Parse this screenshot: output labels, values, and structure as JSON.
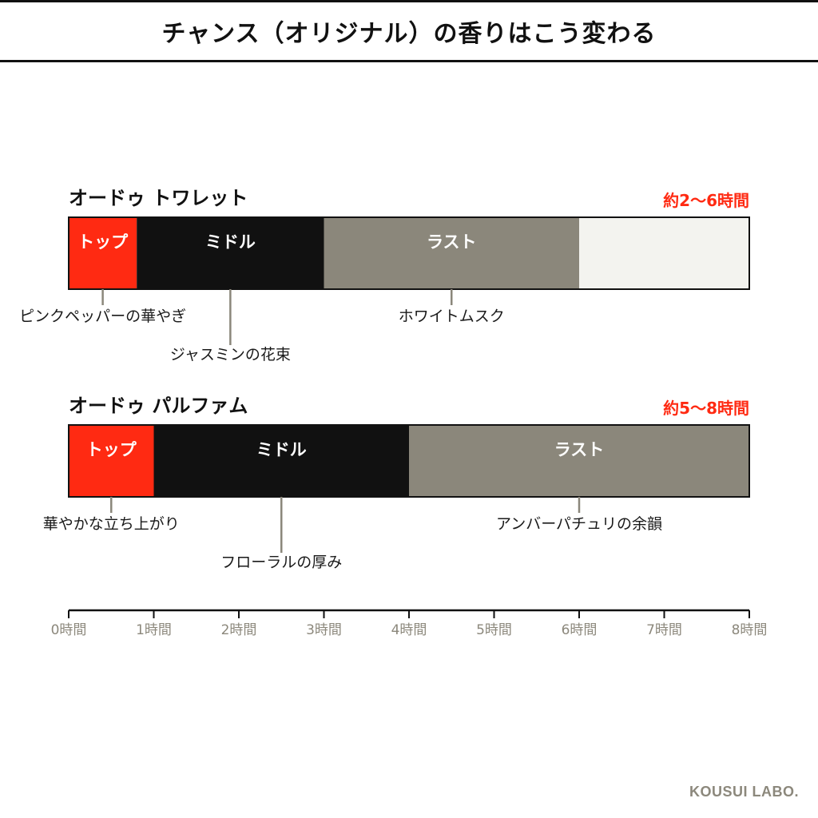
{
  "page": {
    "title": "チャンス（オリジナル）の香りはこう変わる",
    "brand": "KOUSUI LABO."
  },
  "colors": {
    "top": "#ff2a12",
    "middle": "#111111",
    "last": "#8b877b",
    "empty": "#f3f3ef",
    "accent": "#ff2a12",
    "axis": "#111111",
    "tick_label": "#8c887c",
    "leader": "#8b877b"
  },
  "chart_data": {
    "type": "bar",
    "orientation": "horizontal-stacked-timeline",
    "xlabel": "",
    "x_unit": "時間",
    "xlim": [
      0,
      8
    ],
    "x_ticks": [
      0,
      1,
      2,
      3,
      4,
      5,
      6,
      7,
      8
    ],
    "x_tick_labels": [
      "0時間",
      "1時間",
      "2時間",
      "3時間",
      "4時間",
      "5時間",
      "6時間",
      "7時間",
      "8時間"
    ],
    "grid": false,
    "legend": "none",
    "series": [
      {
        "name": "オードゥ トワレット",
        "duration_label": "約2〜6時間",
        "segments": [
          {
            "label": "トップ",
            "phase": "top",
            "start": 0,
            "end": 0.8
          },
          {
            "label": "ミドル",
            "phase": "middle",
            "start": 0.8,
            "end": 3.0
          },
          {
            "label": "ラスト",
            "phase": "last",
            "start": 3.0,
            "end": 6.0
          },
          {
            "label": "",
            "phase": "empty",
            "start": 6.0,
            "end": 8.0
          }
        ],
        "annotations": [
          {
            "text": "ピンクペッパーの華やぎ",
            "x": 0.4,
            "level": 1
          },
          {
            "text": "ジャスミンの花束",
            "x": 1.9,
            "level": 2
          },
          {
            "text": "ホワイトムスク",
            "x": 4.5,
            "level": 1
          }
        ]
      },
      {
        "name": "オードゥ パルファム",
        "duration_label": "約5〜8時間",
        "segments": [
          {
            "label": "トップ",
            "phase": "top",
            "start": 0,
            "end": 1.0
          },
          {
            "label": "ミドル",
            "phase": "middle",
            "start": 1.0,
            "end": 4.0
          },
          {
            "label": "ラスト",
            "phase": "last",
            "start": 4.0,
            "end": 8.0
          }
        ],
        "annotations": [
          {
            "text": "華やかな立ち上がり",
            "x": 0.5,
            "level": 1
          },
          {
            "text": "フローラルの厚み",
            "x": 2.5,
            "level": 2
          },
          {
            "text": "アンバーパチュリの余韻",
            "x": 6.0,
            "level": 1
          }
        ]
      }
    ]
  }
}
